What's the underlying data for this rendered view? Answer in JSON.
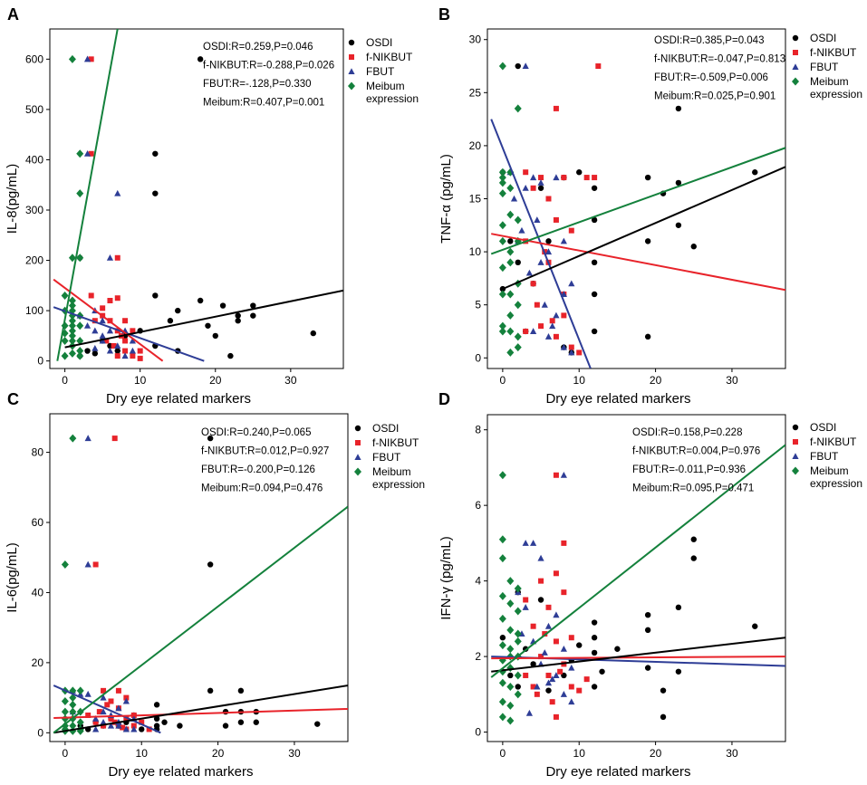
{
  "colors": {
    "OSDI": "#000000",
    "f-NIKBUT": "#e8232a",
    "FBUT": "#2e3d96",
    "Meibum": "#14813c"
  },
  "legend": {
    "labels": [
      "OSDI",
      "f-NIKBUT",
      "FBUT",
      "Meibum expression"
    ],
    "markers": [
      "circle",
      "square",
      "triangle",
      "diamond"
    ]
  },
  "chart_data": [
    {
      "type": "scatter",
      "panel": "A",
      "xlabel": "Dry eye related markers",
      "ylabel": "IL-8(pg/mL)",
      "xlim": [
        -2,
        37
      ],
      "ylim": [
        -15,
        660
      ],
      "xticks": [
        0,
        10,
        20,
        30
      ],
      "yticks": [
        0,
        100,
        200,
        300,
        400,
        500,
        600
      ],
      "stats": [
        "OSDI:R=0.259,P=0.046",
        "f-NIKBUT:R=-0.288,P=0.026",
        "FBUT:R=-.128,P=0.330",
        "Meibum:R=0.407,P=0.001"
      ],
      "series": [
        {
          "name": "OSDI",
          "x": [
            2,
            2,
            3,
            4,
            5,
            6,
            7,
            8,
            10,
            12,
            12,
            12,
            12,
            14,
            15,
            15,
            18,
            18,
            19,
            20,
            21,
            22,
            23,
            23,
            25,
            25,
            33
          ],
          "y": [
            205,
            10,
            20,
            15,
            40,
            30,
            20,
            50,
            60,
            412,
            333,
            130,
            30,
            80,
            100,
            20,
            600,
            120,
            70,
            50,
            110,
            10,
            90,
            80,
            110,
            90,
            55
          ],
          "fit": [
            [
              0,
              27
            ],
            [
              37,
              140
            ]
          ]
        },
        {
          "name": "f-NIKBUT",
          "x": [
            3.5,
            3.5,
            3.5,
            4,
            5,
            5.5,
            6,
            6,
            7,
            7,
            7,
            7,
            8,
            8,
            8,
            9,
            9,
            10,
            10,
            6.5,
            7.5,
            5
          ],
          "y": [
            600,
            412,
            130,
            80,
            105,
            40,
            80,
            120,
            205,
            125,
            60,
            10,
            20,
            80,
            40,
            60,
            10,
            20,
            5,
            30,
            50,
            90
          ],
          "fit": [
            [
              -1.5,
              162
            ],
            [
              13,
              0
            ]
          ]
        },
        {
          "name": "FBUT",
          "x": [
            3,
            3,
            4,
            4,
            5,
            5,
            6,
            6,
            7,
            7,
            8,
            8,
            9,
            9,
            2,
            3,
            4,
            5,
            6
          ],
          "y": [
            600,
            412,
            100,
            60,
            40,
            80,
            205,
            20,
            333,
            30,
            60,
            10,
            20,
            40,
            90,
            70,
            25,
            50,
            60
          ],
          "fit": [
            [
              -1.5,
              107
            ],
            [
              18.5,
              0
            ]
          ]
        },
        {
          "name": "Meibum",
          "x": [
            1,
            2,
            2,
            2,
            1,
            1,
            1,
            1,
            1,
            1,
            1,
            1,
            1,
            1,
            0,
            0,
            0,
            0,
            0,
            2,
            2,
            2,
            2,
            1,
            0,
            2,
            1
          ],
          "y": [
            600,
            412,
            333,
            205,
            205,
            120,
            110,
            100,
            90,
            80,
            70,
            60,
            50,
            40,
            130,
            100,
            70,
            40,
            10,
            90,
            70,
            40,
            20,
            30,
            55,
            10,
            15
          ],
          "fit": [
            [
              -1,
              0
            ],
            [
              7,
              660
            ]
          ]
        }
      ]
    },
    {
      "type": "scatter",
      "panel": "B",
      "xlabel": "Dry eye related markers",
      "ylabel": "TNF-α (pg/mL)",
      "xlim": [
        -2,
        37
      ],
      "ylim": [
        -1,
        31
      ],
      "xticks": [
        0,
        10,
        20,
        30
      ],
      "yticks": [
        0,
        5,
        10,
        15,
        20,
        25,
        30
      ],
      "stats": [
        "OSDI:R=0.385,P=0.043",
        "f-NIKBUT:R=-0.047,P=0.813",
        "FBUT:R=-0.509,P=0.006",
        "Meibum:R=0.025,P=0.901"
      ],
      "series": [
        {
          "name": "OSDI",
          "x": [
            0,
            0,
            1,
            2,
            2,
            3,
            4,
            5,
            6,
            8,
            8,
            9,
            10,
            12,
            12,
            12,
            12,
            12,
            19,
            19,
            19,
            21,
            23,
            23,
            23,
            25,
            33
          ],
          "y": [
            17.5,
            6.5,
            11,
            27.5,
            9,
            2.5,
            7,
            16,
            11,
            1,
            17,
            0.5,
            17.5,
            16,
            13,
            9,
            6,
            2.5,
            17,
            11,
            2,
            15.5,
            23.5,
            16.5,
            12.5,
            10.5,
            17.5
          ],
          "fit": [
            [
              0,
              6.5
            ],
            [
              37,
              18
            ]
          ]
        },
        {
          "name": "f-NIKBUT",
          "x": [
            3,
            3,
            3,
            4,
            4,
            5,
            5,
            6,
            6,
            7,
            7,
            7,
            8,
            8,
            8,
            9,
            9,
            10,
            11,
            12,
            12.5,
            4.5,
            5.5,
            6.5
          ],
          "y": [
            17.5,
            11,
            2.5,
            16,
            7,
            17,
            3,
            15,
            9,
            23.5,
            13,
            2,
            17,
            6,
            4,
            12,
            1,
            0.5,
            17,
            17,
            27.5,
            5,
            10,
            3.5
          ],
          "fit": [
            [
              -1.5,
              11.7
            ],
            [
              37,
              6.4
            ]
          ]
        },
        {
          "name": "FBUT",
          "x": [
            1,
            2,
            3,
            3,
            4,
            4,
            5,
            5,
            6,
            6,
            7,
            7,
            8,
            8,
            8,
            9,
            9,
            1.5,
            2.5,
            3.5,
            4.5,
            5.5,
            6.5
          ],
          "y": [
            17.5,
            11,
            27.5,
            16,
            17,
            2.5,
            16.5,
            9,
            10,
            2,
            17,
            4,
            11,
            6,
            1,
            7,
            0.5,
            15,
            12,
            8,
            13,
            5,
            3
          ],
          "fit": [
            [
              -1.5,
              22.5
            ],
            [
              11.5,
              -1
            ]
          ]
        },
        {
          "name": "Meibum",
          "x": [
            0,
            0,
            0,
            0,
            0,
            0,
            0,
            0,
            0,
            0,
            1,
            1,
            1,
            1,
            1,
            1,
            1,
            1,
            2,
            2,
            2,
            2,
            2,
            2,
            2,
            1,
            0
          ],
          "y": [
            27.5,
            17.5,
            17,
            16.5,
            15.5,
            12.5,
            11,
            8.5,
            3,
            2.5,
            17.5,
            16,
            13.5,
            10,
            9,
            6,
            2.5,
            0.5,
            23.5,
            13,
            11,
            7,
            5,
            2,
            1,
            4,
            6
          ],
          "fit": [
            [
              -1.5,
              9.8
            ],
            [
              37,
              19.8
            ]
          ]
        }
      ]
    },
    {
      "type": "scatter",
      "panel": "C",
      "xlabel": "Dry eye related markers",
      "ylabel": "IL-6(pg/mL)",
      "xlim": [
        -2,
        37
      ],
      "ylim": [
        -2.5,
        91
      ],
      "xticks": [
        0,
        10,
        20,
        30
      ],
      "yticks": [
        0,
        20,
        40,
        60,
        80
      ],
      "stats": [
        "OSDI:R=0.240,P=0.065",
        "f-NIKBUT:R=0.012,P=0.927",
        "FBUT:R=-0.200,P=0.126",
        "Meibum:R=0.094,P=0.476"
      ],
      "series": [
        {
          "name": "OSDI",
          "x": [
            2,
            3,
            4,
            5,
            6,
            7,
            8,
            9,
            10,
            12,
            12,
            12,
            13,
            15,
            19,
            19,
            19,
            21,
            21,
            23,
            23,
            23,
            25,
            25,
            33,
            12
          ],
          "y": [
            2,
            1,
            3,
            2,
            4,
            2,
            3,
            5,
            1,
            8,
            2,
            1,
            3,
            2,
            84,
            48,
            12,
            6,
            2,
            12,
            6,
            3,
            6,
            3,
            2.5,
            4
          ],
          "fit": [
            [
              -1.5,
              0
            ],
            [
              37,
              13.5
            ]
          ]
        },
        {
          "name": "f-NIKBUT",
          "x": [
            4,
            6.5,
            3,
            4,
            5,
            5,
            6,
            6,
            7,
            7,
            7,
            8,
            8,
            8,
            9,
            9,
            10,
            11,
            4.5,
            5.5,
            6.5,
            7.5
          ],
          "y": [
            48,
            84,
            5,
            3,
            12,
            2,
            9,
            4,
            12,
            7,
            2,
            10,
            4,
            1,
            5,
            2,
            3,
            1,
            6,
            8,
            3,
            1.5
          ],
          "fit": [
            [
              -1.5,
              4.2
            ],
            [
              37,
              6.8
            ]
          ]
        },
        {
          "name": "FBUT",
          "x": [
            1,
            3,
            3,
            1,
            2,
            4,
            4,
            5,
            5,
            6,
            6,
            7,
            7,
            8,
            8,
            9,
            9,
            3,
            5,
            7
          ],
          "y": [
            12,
            84,
            48,
            6,
            11,
            4,
            1,
            10,
            3,
            5,
            2,
            7,
            2,
            9,
            1,
            4,
            1,
            11,
            6,
            3
          ],
          "fit": [
            [
              -1.5,
              13.5
            ],
            [
              12.5,
              0
            ]
          ]
        },
        {
          "name": "Meibum",
          "x": [
            0,
            1,
            0,
            0,
            0,
            0,
            0,
            1,
            1,
            1,
            1,
            1,
            1,
            2,
            2,
            2,
            2,
            0,
            0,
            1,
            2
          ],
          "y": [
            48,
            84,
            12,
            9,
            6,
            4,
            2,
            12,
            10,
            8,
            6,
            4,
            2,
            12,
            6,
            3,
            1,
            1,
            0.5,
            0.5,
            0.5
          ],
          "fit": [
            [
              -1.5,
              0
            ],
            [
              37,
              64.5
            ]
          ]
        }
      ]
    },
    {
      "type": "scatter",
      "panel": "D",
      "xlabel": "Dry eye related markers",
      "ylabel": "IFN-γ (pg/mL)",
      "xlim": [
        -2,
        37
      ],
      "ylim": [
        -0.25,
        8.4
      ],
      "xticks": [
        0,
        10,
        20,
        30
      ],
      "yticks": [
        0,
        2,
        4,
        6,
        8
      ],
      "stats": [
        "OSDI:R=0.158,P=0.228",
        "f-NIKBUT:R=0.004,P=0.976",
        "FBUT:R=-0.011,P=0.936",
        "Meibum:R=0.095,P=0.471"
      ],
      "series": [
        {
          "name": "OSDI",
          "x": [
            0,
            1,
            2,
            2,
            3,
            4,
            5,
            6,
            8,
            9,
            10,
            12,
            12,
            12,
            12,
            13,
            15,
            19,
            19,
            19,
            21,
            21,
            23,
            23,
            25,
            25,
            33
          ],
          "y": [
            2.5,
            1.5,
            3.7,
            1.2,
            2.2,
            1.8,
            3.5,
            1.1,
            1.5,
            1.9,
            2.3,
            2.9,
            2.5,
            2.1,
            1.2,
            1.6,
            2.2,
            3.1,
            2.7,
            1.7,
            1.1,
            0.4,
            3.3,
            1.6,
            5.1,
            4.6,
            2.8
          ],
          "fit": [
            [
              -1.5,
              1.6
            ],
            [
              37,
              2.5
            ]
          ]
        },
        {
          "name": "f-NIKBUT",
          "x": [
            7,
            8,
            3,
            3,
            4,
            4,
            5,
            5,
            6,
            6,
            7,
            7,
            7,
            8,
            8,
            9,
            9,
            10,
            11,
            6.5,
            5.5,
            4.5,
            7.5
          ],
          "y": [
            6.8,
            5,
            3.5,
            1.5,
            2.8,
            1.2,
            4,
            2,
            3.3,
            1.5,
            4.2,
            2.4,
            0.4,
            3.7,
            1.8,
            2.5,
            1.2,
            1.1,
            1.4,
            0.8,
            2.6,
            1,
            1.6
          ],
          "fit": [
            [
              -1.5,
              1.95
            ],
            [
              37,
              2.0
            ]
          ]
        },
        {
          "name": "FBUT",
          "x": [
            8,
            3,
            4,
            2,
            3,
            4,
            5,
            5,
            6,
            6,
            7,
            7,
            8,
            8,
            9,
            9,
            2.5,
            3.5,
            4.5,
            5.5,
            6.5
          ],
          "y": [
            6.8,
            5,
            5,
            3.7,
            3.3,
            2.4,
            4.6,
            1.8,
            2.8,
            1.3,
            3.1,
            1.5,
            2.2,
            1,
            1.7,
            0.8,
            2.6,
            0.5,
            1.2,
            2.1,
            1.4
          ],
          "fit": [
            [
              -1.5,
              2.0
            ],
            [
              37,
              1.75
            ]
          ]
        },
        {
          "name": "Meibum",
          "x": [
            0,
            0,
            0,
            0,
            0,
            0,
            0,
            0,
            0,
            0,
            1,
            1,
            1,
            1,
            1,
            1,
            1,
            1,
            2,
            2,
            2,
            2,
            2,
            2,
            0,
            1,
            2
          ],
          "y": [
            6.8,
            5.1,
            4.6,
            3.6,
            3,
            2.3,
            1.9,
            1.3,
            0.8,
            0.4,
            4,
            3.4,
            2.7,
            2.2,
            1.7,
            1.2,
            0.7,
            0.3,
            3.8,
            3.2,
            2.6,
            2,
            1.5,
            1,
            1.6,
            2,
            2.4
          ],
          "fit": [
            [
              -1.5,
              1.45
            ],
            [
              37,
              7.6
            ]
          ]
        }
      ]
    }
  ]
}
